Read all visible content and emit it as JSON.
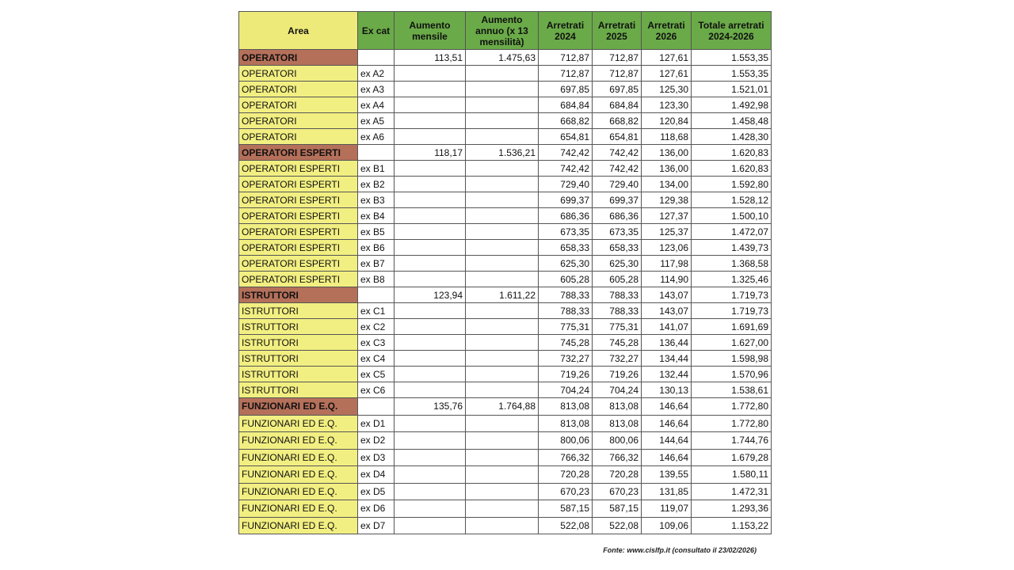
{
  "table": {
    "header": [
      "Area",
      "Ex cat",
      "Aumento mensile",
      "Aumento annuo (x 13 mensilità)",
      "Arretrati 2024",
      "Arretrati 2025",
      "Arretrati 2026",
      "Totale arretrati 2024-2026"
    ],
    "sections": [
      {
        "group": [
          "OPERATORI",
          "113,51",
          "1.475,63",
          "712,87",
          "712,87",
          "127,61",
          "1.553,35"
        ],
        "rows": [
          [
            "OPERATORI",
            "ex A2",
            "712,87",
            "712,87",
            "127,61",
            "1.553,35"
          ],
          [
            "OPERATORI",
            "ex A3",
            "697,85",
            "697,85",
            "125,30",
            "1.521,01"
          ],
          [
            "OPERATORI",
            "ex A4",
            "684,84",
            "684,84",
            "123,30",
            "1.492,98"
          ],
          [
            "OPERATORI",
            "ex A5",
            "668,82",
            "668,82",
            "120,84",
            "1.458,48"
          ],
          [
            "OPERATORI",
            "ex A6",
            "654,81",
            "654,81",
            "118,68",
            "1.428,30"
          ]
        ]
      },
      {
        "group": [
          "OPERATORI ESPERTI",
          "118,17",
          "1.536,21",
          "742,42",
          "742,42",
          "136,00",
          "1.620,83"
        ],
        "rows": [
          [
            "OPERATORI ESPERTI",
            "ex B1",
            "742,42",
            "742,42",
            "136,00",
            "1.620,83"
          ],
          [
            "OPERATORI ESPERTI",
            "ex B2",
            "729,40",
            "729,40",
            "134,00",
            "1.592,80"
          ],
          [
            "OPERATORI ESPERTI",
            "ex B3",
            "699,37",
            "699,37",
            "129,38",
            "1.528,12"
          ],
          [
            "OPERATORI ESPERTI",
            "ex B4",
            "686,36",
            "686,36",
            "127,37",
            "1.500,10"
          ],
          [
            "OPERATORI ESPERTI",
            "ex B5",
            "673,35",
            "673,35",
            "125,37",
            "1.472,07"
          ],
          [
            "OPERATORI ESPERTI",
            "ex B6",
            "658,33",
            "658,33",
            "123,06",
            "1.439,73"
          ],
          [
            "OPERATORI ESPERTI",
            "ex B7",
            "625,30",
            "625,30",
            "117,98",
            "1.368,58"
          ],
          [
            "OPERATORI ESPERTI",
            "ex B8",
            "605,28",
            "605,28",
            "114,90",
            "1.325,46"
          ]
        ]
      },
      {
        "group": [
          "ISTRUTTORI",
          "123,94",
          "1.611,22",
          "788,33",
          "788,33",
          "143,07",
          "1.719,73"
        ],
        "rows": [
          [
            "ISTRUTTORI",
            "ex C1",
            "788,33",
            "788,33",
            "143,07",
            "1.719,73"
          ],
          [
            "ISTRUTTORI",
            "ex C2",
            "775,31",
            "775,31",
            "141,07",
            "1.691,69"
          ],
          [
            "ISTRUTTORI",
            "ex C3",
            "745,28",
            "745,28",
            "136,44",
            "1.627,00"
          ],
          [
            "ISTRUTTORI",
            "ex C4",
            "732,27",
            "732,27",
            "134,44",
            "1.598,98"
          ],
          [
            "ISTRUTTORI",
            "ex C5",
            "719,26",
            "719,26",
            "132,44",
            "1.570,96"
          ],
          [
            "ISTRUTTORI",
            "ex C6",
            "704,24",
            "704,24",
            "130,13",
            "1.538,61"
          ]
        ]
      },
      {
        "group": [
          "FUNZIONARI ED E.Q.",
          "135,76",
          "1.764,88",
          "813,08",
          "813,08",
          "146,64",
          "1.772,80"
        ],
        "rows": [
          [
            "FUNZIONARI ED E.Q.",
            "ex D1",
            "813,08",
            "813,08",
            "146,64",
            "1.772,80"
          ],
          [
            "FUNZIONARI ED E.Q.",
            "ex D2",
            "800,06",
            "800,06",
            "144,64",
            "1.744,76"
          ],
          [
            "FUNZIONARI ED E.Q.",
            "ex D3",
            "766,32",
            "766,32",
            "146,64",
            "1.679,28"
          ],
          [
            "FUNZIONARI ED E.Q.",
            "ex D4",
            "720,28",
            "720,28",
            "139,55",
            "1.580,11"
          ],
          [
            "FUNZIONARI ED E.Q.",
            "ex D5",
            "670,23",
            "670,23",
            "131,85",
            "1.472,31"
          ],
          [
            "FUNZIONARI ED E.Q.",
            "ex D6",
            "587,15",
            "587,15",
            "119,07",
            "1.293,36"
          ],
          [
            "FUNZIONARI ED E.Q.",
            "ex D7",
            "522,08",
            "522,08",
            "109,06",
            "1.153,22"
          ]
        ]
      }
    ]
  },
  "footer": "Fonte: www.cislfp.it (consultato il 23/02/2026)"
}
